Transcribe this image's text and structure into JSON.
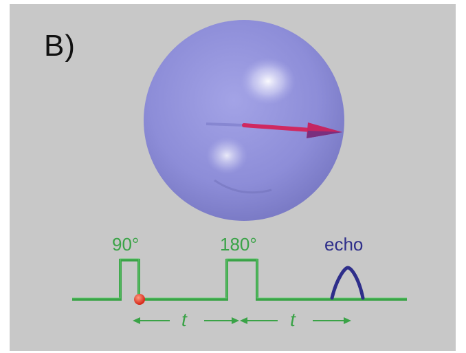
{
  "panel_label": "B)",
  "pulses": {
    "p90_label": "90°",
    "p180_label": "180°",
    "echo_label": "echo"
  },
  "intervals": {
    "first_label": "t",
    "second_label": "t"
  },
  "colors": {
    "background": "#c8c8c8",
    "sphere": "#8f8fd9",
    "vector": "#d02860",
    "sequence_line": "#3aa347",
    "echo": "#2e2e8a",
    "marker_dot": "#e03a2a"
  }
}
